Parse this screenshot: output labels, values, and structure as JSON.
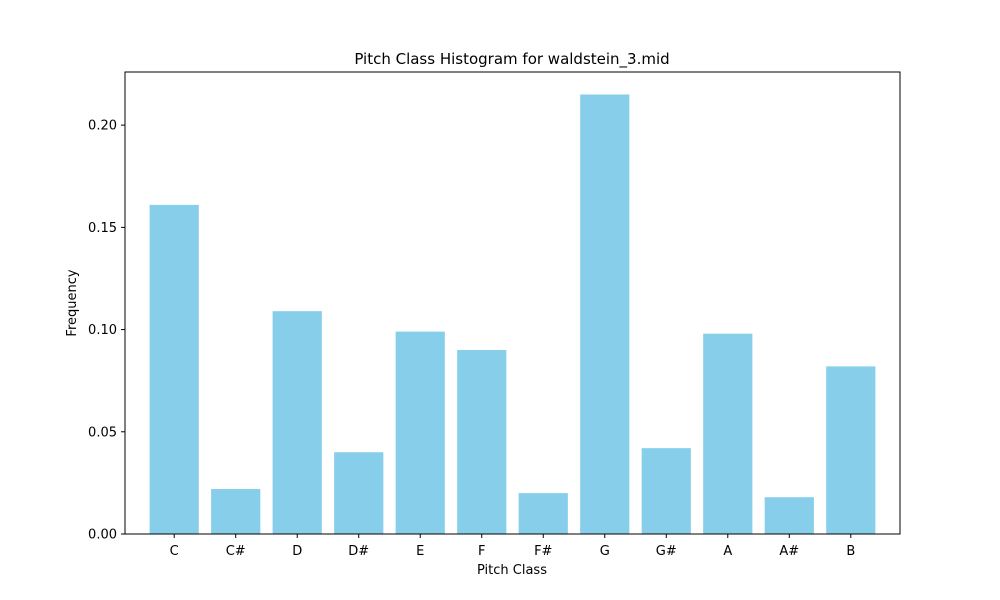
{
  "chart_data": {
    "type": "bar",
    "title": "Pitch Class Histogram for waldstein_3.mid",
    "xlabel": "Pitch Class",
    "ylabel": "Frequency",
    "categories": [
      "C",
      "C#",
      "D",
      "D#",
      "E",
      "F",
      "F#",
      "G",
      "G#",
      "A",
      "A#",
      "B"
    ],
    "values": [
      0.161,
      0.022,
      0.109,
      0.04,
      0.099,
      0.09,
      0.02,
      0.215,
      0.042,
      0.098,
      0.018,
      0.082
    ],
    "ylim": [
      0,
      0.226
    ],
    "yticks": [
      0.0,
      0.05,
      0.1,
      0.15,
      0.2
    ],
    "ytick_labels": [
      "0.00",
      "0.05",
      "0.10",
      "0.15",
      "0.20"
    ],
    "bar_color": "#87ceeb",
    "grid": false
  }
}
